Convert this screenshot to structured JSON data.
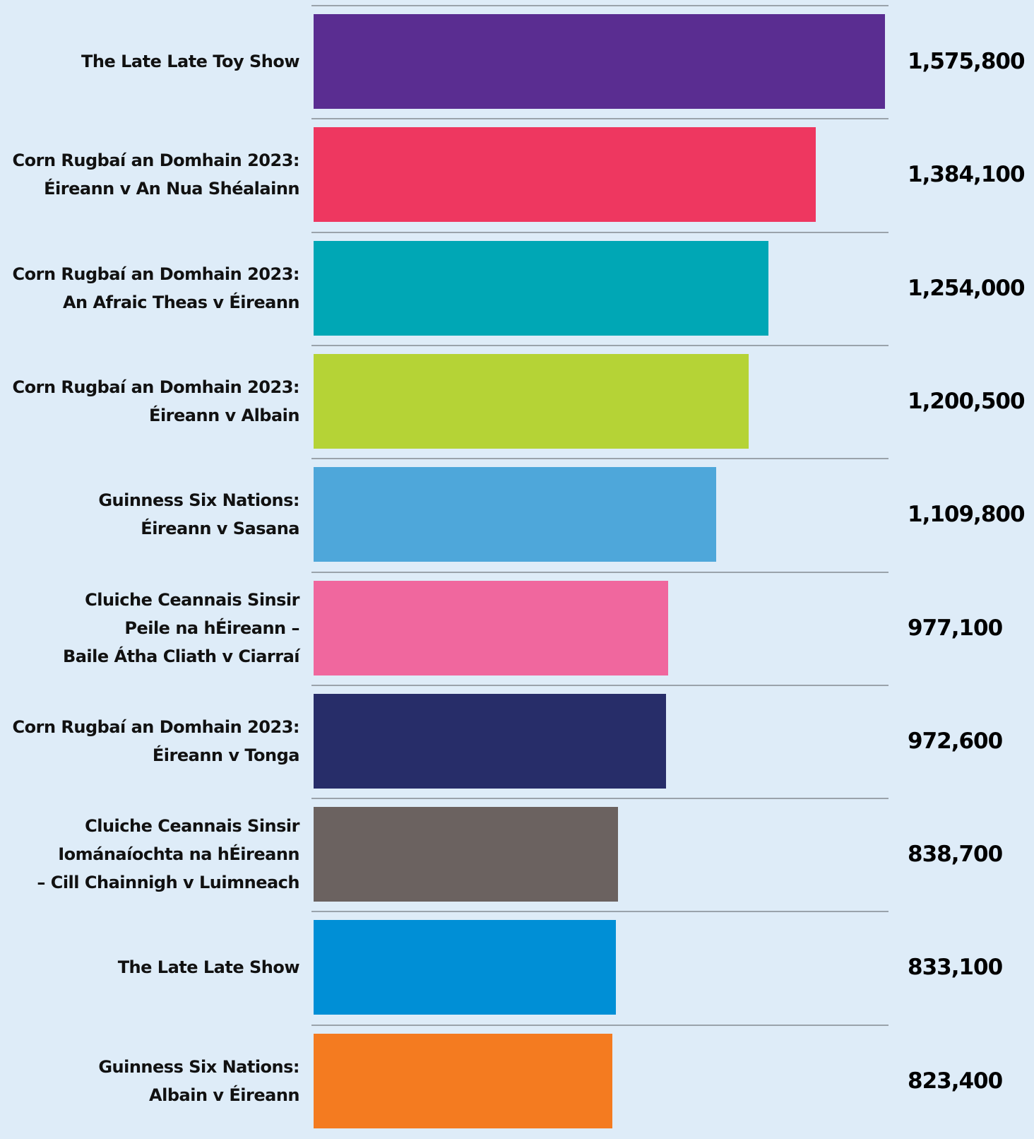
{
  "chart_data": {
    "type": "bar",
    "orientation": "horizontal",
    "categories": [
      "The Late Late Toy Show",
      "Corn Rugbaí an Domhain 2023:\nÉireann v An Nua Shéalainn",
      "Corn Rugbaí an Domhain 2023:\nAn Afraic Theas v Éireann",
      "Corn Rugbaí an Domhain 2023:\nÉireann v Albain",
      "Guinness Six Nations:\nÉireann v Sasana",
      "Cluiche Ceannais Sinsir\nPeile na hÉireann –\nBaile Átha Cliath v Ciarraí",
      "Corn Rugbaí an Domhain 2023:\nÉireann v Tonga",
      "Cluiche Ceannais Sinsir\nIománaíochta na hÉireann\n– Cill Chainnigh v Luimneach",
      "The Late Late Show",
      "Guinness Six Nations:\nAlbain v Éireann"
    ],
    "values": [
      1575800,
      1384100,
      1254000,
      1200500,
      1109800,
      977100,
      972600,
      838700,
      833100,
      823400
    ],
    "value_labels": [
      "1,575,800",
      "1,384,100",
      "1,254,000",
      "1,200,500",
      "1,109,800",
      "977,100",
      "972,600",
      "838,700",
      "833,100",
      "823,400"
    ],
    "colors": [
      "#5a2d91",
      "#ee3760",
      "#00a7b5",
      "#b5d336",
      "#4ea7da",
      "#f0679e",
      "#272d69",
      "#6b6260",
      "#008fd6",
      "#f47b20"
    ],
    "xlim": [
      0,
      1575800
    ]
  }
}
